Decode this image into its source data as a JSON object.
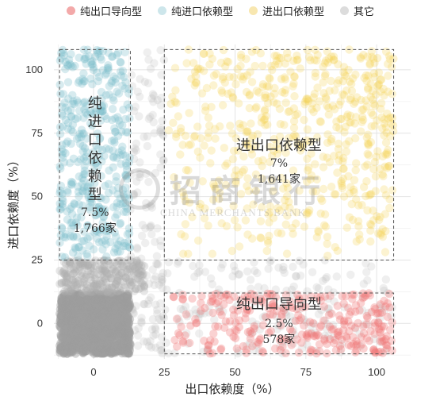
{
  "chart_data": {
    "type": "scatter",
    "title": "",
    "xlabel": "出口依赖度（%）",
    "ylabel": "进口依赖度（%）",
    "xlim": [
      -14,
      112
    ],
    "ylim": [
      -14,
      110
    ],
    "xticks": [
      0,
      25,
      50,
      75,
      100
    ],
    "yticks": [
      0,
      25,
      50,
      75,
      100
    ],
    "grid": true,
    "legend_position": "top",
    "series": [
      {
        "name": "纯出口导向型",
        "color": "#f08080",
        "region": {
          "x": [
            25,
            106
          ],
          "y": [
            -12,
            12
          ]
        },
        "count": 578
      },
      {
        "name": "纯进口依赖型",
        "color": "#89c4cf",
        "region": {
          "x": [
            -12,
            13
          ],
          "y": [
            25,
            108
          ]
        },
        "count": 1766
      },
      {
        "name": "进出口依赖型",
        "color": "#f3d46a",
        "region": {
          "x": [
            25,
            106
          ],
          "y": [
            25,
            108
          ]
        },
        "count": 1641
      },
      {
        "name": "其它",
        "color": "#b8b8b8",
        "region": {
          "x": [
            -12,
            25
          ],
          "y": [
            -12,
            25
          ]
        }
      }
    ],
    "annotations": [
      {
        "group": "纯进口依赖型",
        "name": "纯进口依赖型",
        "percent": "7.5%",
        "companies": "1,766家"
      },
      {
        "group": "进出口依赖型",
        "name": "进出口依赖型",
        "percent": "7%",
        "companies": "1,641家"
      },
      {
        "group": "纯出口导向型",
        "name": "纯出口导向型",
        "percent": "2.5%",
        "companies": "578家"
      }
    ]
  },
  "watermark": {
    "cn": "招商银行",
    "en": "CHINA MERCHANTS BANK"
  }
}
